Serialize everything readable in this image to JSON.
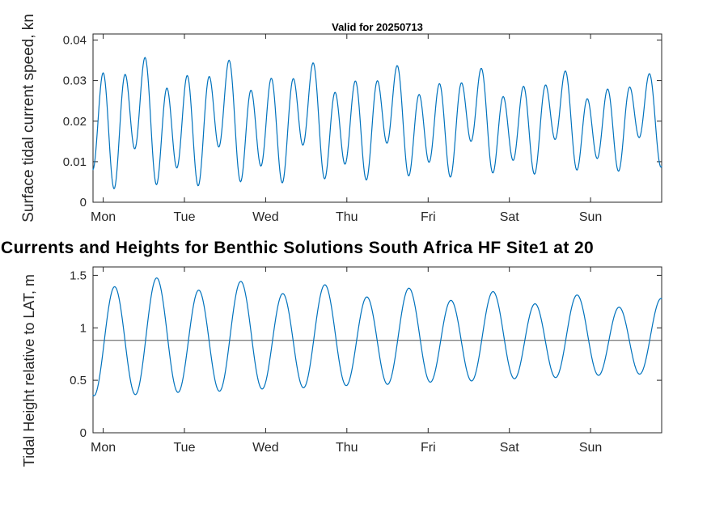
{
  "figure": {
    "main_title": "Currents and Heights for Benthic Solutions South Africa HF Site1 at 20"
  },
  "colors": {
    "line": "#0072BD",
    "axis": "#262626",
    "ref_line": "#555555",
    "background": "#ffffff",
    "title_text": "#000000"
  },
  "chart_data": [
    {
      "type": "line",
      "title": "Valid for 20250713",
      "ylabel": "Surface tidal current speed, kn",
      "xlabel": "",
      "x_unit": "hours from Monday 00:00",
      "xlim": [
        -3,
        165
      ],
      "ylim": [
        0,
        0.0415
      ],
      "grid": false,
      "legend": null,
      "x_ticks": [
        {
          "t": 0,
          "label": "Mon"
        },
        {
          "t": 24,
          "label": "Tue"
        },
        {
          "t": 48,
          "label": "Wed"
        },
        {
          "t": 72,
          "label": "Thu"
        },
        {
          "t": 96,
          "label": "Fri"
        },
        {
          "t": 120,
          "label": "Sat"
        },
        {
          "t": 144,
          "label": "Sun"
        }
      ],
      "y_ticks": [
        {
          "v": 0,
          "label": "0"
        },
        {
          "v": 0.01,
          "label": "0.01"
        },
        {
          "v": 0.02,
          "label": "0.02"
        },
        {
          "v": 0.03,
          "label": "0.03"
        },
        {
          "v": 0.04,
          "label": "0.04"
        }
      ],
      "series": [
        {
          "name": "surface-tidal-current-speed-kn",
          "color": "#0072BD",
          "model": "harmonic_sum",
          "base": 0.0195,
          "clip_min": 0.0008,
          "terms": [
            {
              "period_h": 6.21,
              "phase_peak_h": 0.1,
              "amp_start": 0.0125,
              "amp_end": 0.0085
            },
            {
              "period_h": 12.42,
              "phase_peak_h": -2.0,
              "amp_start": 0.004,
              "amp_end": 0.003
            },
            {
              "period_h": 24.84,
              "phase_peak_h": 10.0,
              "amp_start": 0.0025,
              "amp_end": 0.0025
            }
          ]
        }
      ],
      "observed_peaks_kn_approx": [
        0.029,
        0.034,
        0.037,
        0.026,
        0.031,
        0.035,
        0.038,
        0.024,
        0.029,
        0.035,
        0.037,
        0.021,
        0.027,
        0.033,
        0.035,
        0.019,
        0.026,
        0.033,
        0.031,
        0.017,
        0.026,
        0.031,
        0.027,
        0.024,
        0.026,
        0.027,
        0.024,
        0.025
      ],
      "observed_troughs_kn_approx": [
        0.024,
        0.018,
        0.007,
        0.013,
        0.02,
        0.008,
        0.014,
        0.004,
        0.017,
        0.01,
        0.019,
        0.001,
        0.009,
        0.016,
        0.002,
        0.013,
        0.008,
        0.017,
        0.001,
        0.011,
        0.013,
        0.002,
        0.012,
        0.016,
        0.013,
        0.018,
        0.015
      ]
    },
    {
      "type": "line",
      "title": "",
      "ylabel": "Tidal Height relative to LAT, m",
      "xlabel": "",
      "x_unit": "hours from Monday 00:00",
      "xlim": [
        -3,
        165
      ],
      "ylim": [
        0,
        1.58
      ],
      "grid": false,
      "legend": null,
      "x_ticks": [
        {
          "t": 0,
          "label": "Mon"
        },
        {
          "t": 24,
          "label": "Tue"
        },
        {
          "t": 48,
          "label": "Wed"
        },
        {
          "t": 72,
          "label": "Thu"
        },
        {
          "t": 96,
          "label": "Fri"
        },
        {
          "t": 120,
          "label": "Sat"
        },
        {
          "t": 144,
          "label": "Sun"
        }
      ],
      "y_ticks": [
        {
          "v": 0,
          "label": "0"
        },
        {
          "v": 0.5,
          "label": "0.5"
        },
        {
          "v": 1,
          "label": "1"
        },
        {
          "v": 1.5,
          "label": "1.5"
        }
      ],
      "ref_lines": [
        {
          "v": 0.88,
          "color": "#555555",
          "name": "mean-level-line"
        }
      ],
      "series": [
        {
          "name": "tidal-height-m",
          "color": "#0072BD",
          "model": "harmonic_sum",
          "base": 0.9,
          "clip_min": null,
          "terms": [
            {
              "period_h": 12.42,
              "phase_peak_h": 3.4,
              "amp_start": 0.55,
              "amp_end": 0.33
            },
            {
              "period_h": 24.84,
              "phase_peak_h": 16.0,
              "amp_start": 0.05,
              "amp_end": 0.05
            }
          ]
        }
      ],
      "observed_high_tides_m_approx": [
        1.45,
        1.52,
        1.4,
        1.52,
        1.35,
        1.47,
        1.33,
        1.43,
        1.22,
        1.36,
        1.17,
        1.3,
        1.17,
        1.32
      ],
      "observed_low_tides_m_approx": [
        0.33,
        0.29,
        0.34,
        0.33,
        0.36,
        0.37,
        0.43,
        0.44,
        0.5,
        0.47,
        0.55,
        0.5,
        0.57
      ]
    }
  ]
}
